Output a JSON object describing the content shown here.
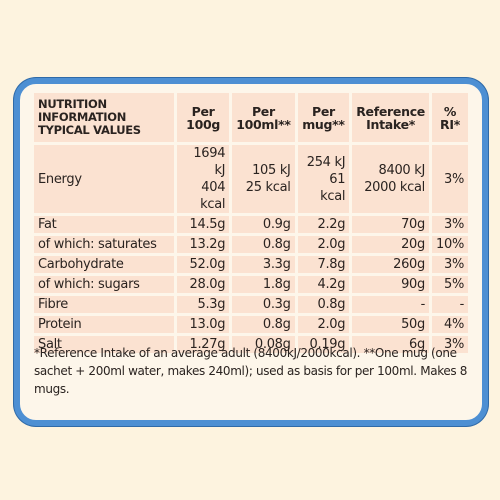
{
  "table": {
    "header": [
      [
        "NUTRITION",
        "INFORMATION",
        "TYPICAL VALUES"
      ],
      [
        "Per",
        "100g"
      ],
      [
        "Per",
        "100ml**"
      ],
      [
        "Per",
        "mug**"
      ],
      [
        "Reference",
        "Intake*"
      ],
      [
        "%",
        "RI*"
      ]
    ],
    "rows": [
      {
        "label": "Energy",
        "cells": [
          [
            "1694 kJ",
            "404 kcal"
          ],
          [
            "105 kJ",
            "25 kcal"
          ],
          [
            "254 kJ",
            "61 kcal"
          ],
          [
            "8400 kJ",
            "2000 kcal"
          ],
          "3%"
        ]
      },
      {
        "label": "Fat",
        "cells": [
          "14.5g",
          "0.9g",
          "2.2g",
          "70g",
          "3%"
        ]
      },
      {
        "label": "of which: saturates",
        "cells": [
          "13.2g",
          "0.8g",
          "2.0g",
          "20g",
          "10%"
        ]
      },
      {
        "label": "Carbohydrate",
        "cells": [
          "52.0g",
          "3.3g",
          "7.8g",
          "260g",
          "3%"
        ]
      },
      {
        "label": "of which: sugars",
        "cells": [
          "28.0g",
          "1.8g",
          "4.2g",
          "90g",
          "5%"
        ]
      },
      {
        "label": "Fibre",
        "cells": [
          "5.3g",
          "0.3g",
          "0.8g",
          "-",
          "-"
        ]
      },
      {
        "label": "Protein",
        "cells": [
          "13.0g",
          "0.8g",
          "2.0g",
          "50g",
          "4%"
        ]
      },
      {
        "label": "Salt",
        "cells": [
          "1.27g",
          "0.08g",
          "0.19g",
          "6g",
          "3%"
        ]
      }
    ],
    "footnote": "*Reference Intake of an average adult (8400kJ/2000kcal). **One mug (one sachet + 200ml water, makes 240ml); used as basis for per 100ml. Makes 8 mugs."
  }
}
